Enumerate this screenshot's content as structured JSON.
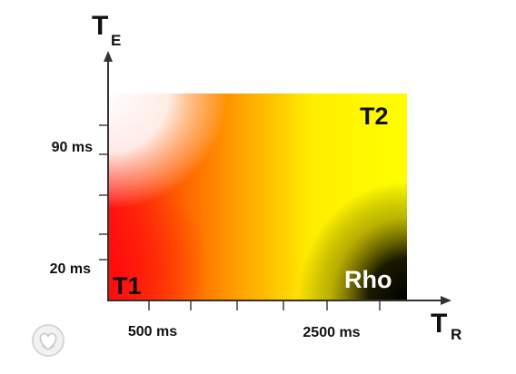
{
  "axes": {
    "y_title": {
      "main": "T",
      "sub": "E"
    },
    "x_title": {
      "main": "T",
      "sub": "R"
    }
  },
  "y_ticks": [
    "90 ms",
    "20 ms"
  ],
  "x_ticks": [
    "500 ms",
    "2500 ms"
  ],
  "regions": {
    "t1": {
      "label": "T1",
      "color": "#111111"
    },
    "t2": {
      "label": "T2",
      "color": "#111111"
    },
    "rho": {
      "label": "Rho",
      "color": "#ffffff"
    }
  },
  "colors": {
    "red": "#ff1010",
    "orange": "#ff8a00",
    "yellow": "#ffff00",
    "white": "#ffffff",
    "black": "#000000",
    "axis": "#333333"
  },
  "logo": {
    "icon": "heart-hands-logo"
  }
}
